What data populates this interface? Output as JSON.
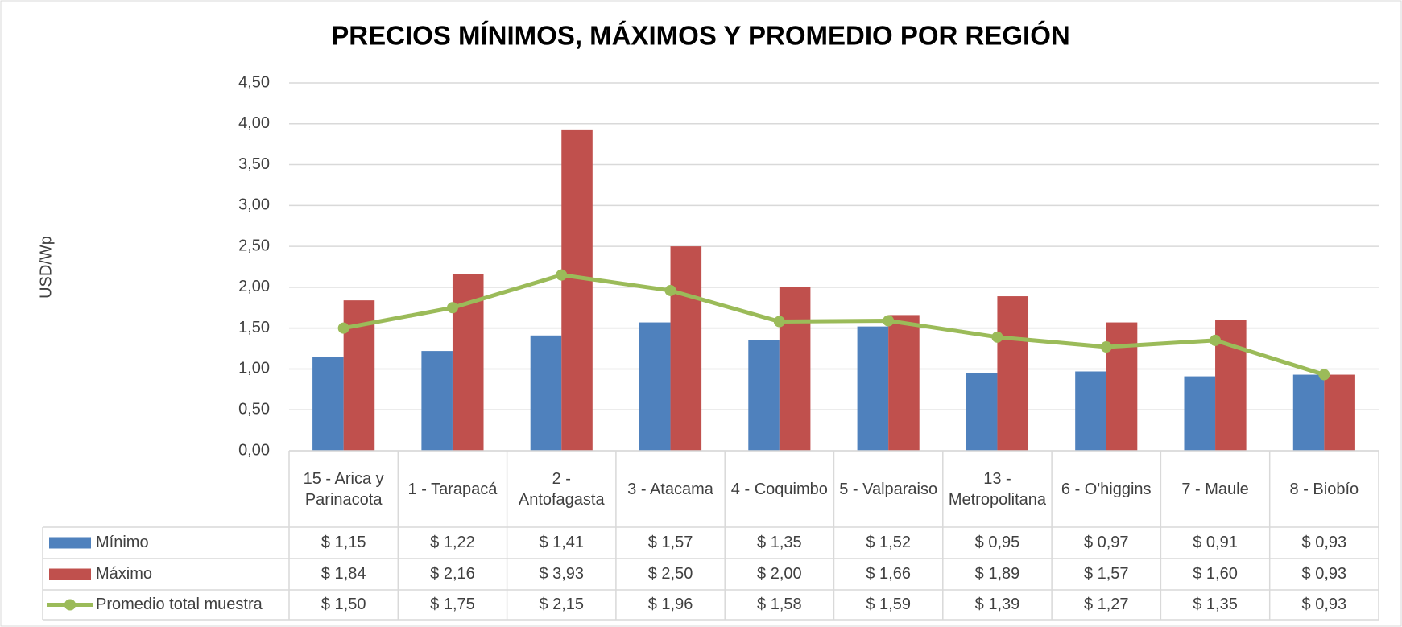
{
  "chart_data": {
    "type": "bar",
    "title": "PRECIOS MÍNIMOS, MÁXIMOS Y PROMEDIO POR REGIÓN",
    "y_label": "USD/Wp",
    "categories": [
      "15 - Arica y Parinacota",
      "1 - Tarapacá",
      "2 - Antofagasta",
      "3 - Atacama",
      "4 - Coquimbo",
      "5 - Valparaiso",
      "13 - Metropolitana",
      "6 - O'higgins",
      "7 - Maule",
      "8 - Biobío"
    ],
    "series": [
      {
        "name": "Mínimo",
        "color": "#4f81bd",
        "type": "bar",
        "values": [
          1.15,
          1.22,
          1.41,
          1.57,
          1.35,
          1.52,
          0.95,
          0.97,
          0.91,
          0.93
        ],
        "value_labels": [
          "$ 1,15",
          "$ 1,22",
          "$ 1,41",
          "$ 1,57",
          "$ 1,35",
          "$ 1,52",
          "$ 0,95",
          "$ 0,97",
          "$ 0,91",
          "$ 0,93"
        ]
      },
      {
        "name": "Máximo",
        "color": "#c0504d",
        "type": "bar",
        "values": [
          1.84,
          2.16,
          3.93,
          2.5,
          2.0,
          1.66,
          1.89,
          1.57,
          1.6,
          0.93
        ],
        "value_labels": [
          "$ 1,84",
          "$ 2,16",
          "$ 3,93",
          "$ 2,50",
          "$ 2,00",
          "$ 1,66",
          "$ 1,89",
          "$ 1,57",
          "$ 1,60",
          "$ 0,93"
        ]
      },
      {
        "name": "Promedio total muestra",
        "color": "#9bbb59",
        "type": "line",
        "values": [
          1.5,
          1.75,
          2.15,
          1.96,
          1.58,
          1.59,
          1.39,
          1.27,
          1.35,
          0.93
        ],
        "value_labels": [
          "$ 1,50",
          "$ 1,75",
          "$ 2,15",
          "$ 1,96",
          "$ 1,58",
          "$ 1,59",
          "$ 1,39",
          "$ 1,27",
          "$ 1,35",
          "$ 0,93"
        ]
      }
    ],
    "ylim": [
      0,
      4.5
    ],
    "yticks": [
      {
        "value": 0,
        "label": "0,00"
      },
      {
        "value": 0.5,
        "label": "0,50"
      },
      {
        "value": 1,
        "label": "1,00"
      },
      {
        "value": 1.5,
        "label": "1,50"
      },
      {
        "value": 2,
        "label": "2,00"
      },
      {
        "value": 2.5,
        "label": "2,50"
      },
      {
        "value": 3,
        "label": "3,00"
      },
      {
        "value": 3.5,
        "label": "3,50"
      },
      {
        "value": 4,
        "label": "4,00"
      },
      {
        "value": 4.5,
        "label": "4,50"
      }
    ],
    "grid": true,
    "data_table": true
  }
}
